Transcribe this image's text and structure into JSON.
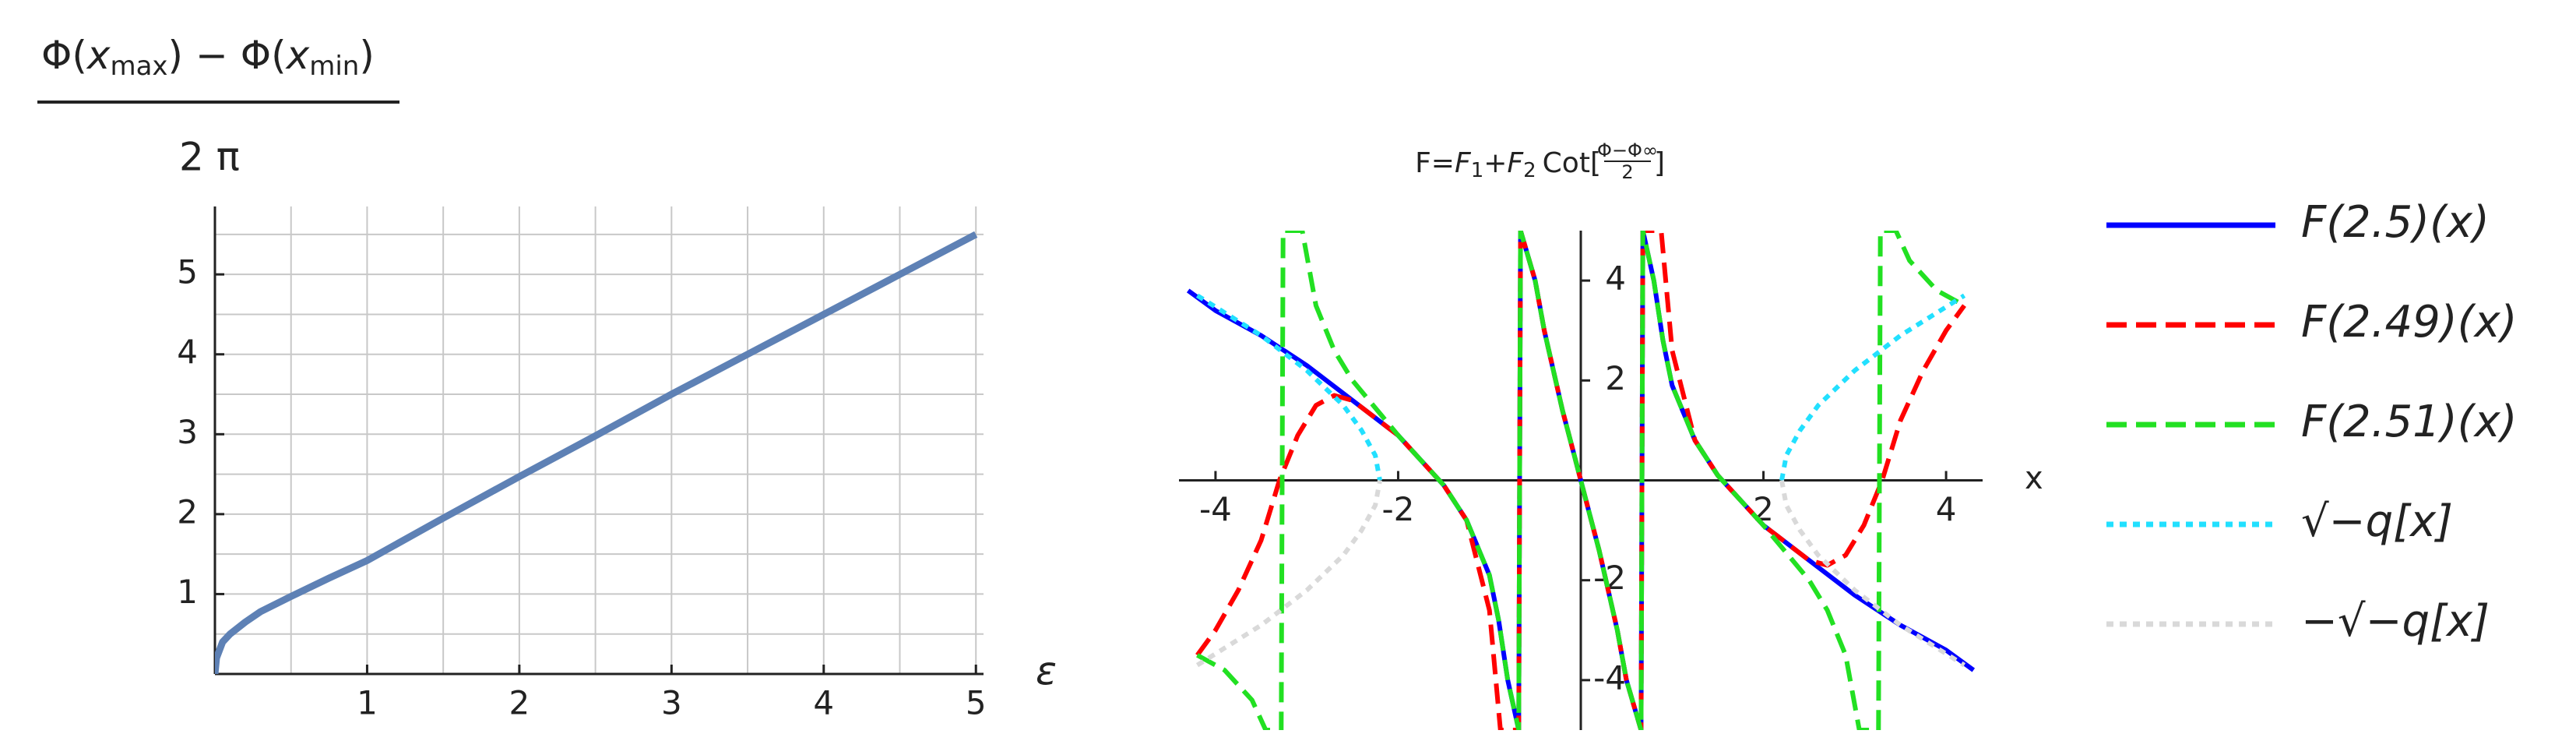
{
  "chart_data": [
    {
      "type": "line",
      "ylabel": {
        "numerator": [
          "Φ(",
          "x",
          "max",
          ") − Φ(",
          "x",
          "min",
          ")"
        ],
        "denominator": "2 π"
      },
      "xlabel": "ε",
      "x": [
        0,
        0.01,
        0.05,
        0.1,
        0.2,
        0.3,
        0.5,
        0.75,
        1,
        1.5,
        2,
        2.5,
        3,
        3.5,
        4,
        4.5,
        5
      ],
      "series": [
        {
          "color": "#5e81b5",
          "values": [
            0,
            0.2,
            0.4,
            0.5,
            0.65,
            0.78,
            0.97,
            1.2,
            1.42,
            1.95,
            2.47,
            2.98,
            3.5,
            4.0,
            4.5,
            5.0,
            5.5
          ]
        }
      ],
      "xlim": [
        0,
        5.05
      ],
      "ylim": [
        0,
        5.85
      ],
      "xticks": [
        1,
        2,
        3,
        4,
        5
      ],
      "yticks": [
        1,
        2,
        3,
        4,
        5
      ],
      "xgrid": [
        0.5,
        1,
        1.5,
        2,
        2.5,
        3,
        3.5,
        4,
        4.5,
        5
      ],
      "ygrid": [
        0.5,
        1,
        1.5,
        2,
        2.5,
        3,
        3.5,
        4,
        4.5,
        5,
        5.5
      ]
    },
    {
      "type": "line",
      "title": [
        "F=",
        "F",
        "1",
        "+",
        "F",
        "2",
        "Cot[",
        "Φ−Φ∞",
        "2",
        "]"
      ],
      "xlabel": "x",
      "xlim": [
        -4.4,
        4.4
      ],
      "ylim": [
        -5,
        5
      ],
      "xticks": [
        -4,
        -2,
        2,
        4
      ],
      "yticks": [
        -4,
        -2,
        2,
        4
      ],
      "legend": "right",
      "series": [
        {
          "name": "F(2.5)(x)",
          "color": "#0000ff",
          "dash": "solid",
          "x": [
            -4.3,
            -4,
            -3.5,
            -3,
            -2.5,
            -2,
            -1.5,
            -1.25,
            -1,
            -0.9,
            -0.8,
            -0.68,
            -0.66,
            -0.5,
            -0.4,
            -0.3,
            -0.2,
            -0.1,
            0,
            0.1,
            0.2,
            0.3,
            0.4,
            0.5,
            0.66,
            0.68,
            0.8,
            0.9,
            1,
            1.25,
            1.5,
            2,
            2.5,
            3,
            3.5,
            4,
            4.3
          ],
          "values": [
            3.8,
            3.4,
            2.9,
            2.3,
            1.6,
            0.9,
            -0.1,
            -0.8,
            -1.9,
            -2.8,
            -4,
            -5,
            5,
            4,
            3,
            2.2,
            1.4,
            0.7,
            0,
            -0.7,
            -1.4,
            -2.2,
            -3,
            -4,
            -5,
            5,
            4,
            2.8,
            1.9,
            0.8,
            0.1,
            -0.9,
            -1.6,
            -2.3,
            -2.9,
            -3.4,
            -3.8
          ]
        },
        {
          "name": "F(2.49)(x)",
          "color": "#ff0000",
          "dash": "dashed",
          "x": [
            -4.2,
            -4,
            -3.75,
            -3.5,
            -3.3,
            -3.1,
            -2.9,
            -2.7,
            -2.5,
            -2,
            -1.5,
            -1.25,
            -1,
            -0.88,
            -0.68,
            -0.66,
            -0.5,
            -0.4,
            -0.3,
            -0.2,
            -0.1,
            0,
            0.1,
            0.2,
            0.3,
            0.4,
            0.5,
            0.66,
            0.68,
            0.88,
            1,
            1.25,
            1.5,
            2,
            2.5,
            2.7,
            2.9,
            3.1,
            3.3,
            3.5,
            3.75,
            4,
            4.2
          ],
          "values": [
            -3.5,
            -3,
            -2.2,
            -1.2,
            0,
            0.9,
            1.5,
            1.7,
            1.6,
            0.9,
            -0.1,
            -0.8,
            -2.6,
            -5,
            -5,
            5,
            4,
            3,
            2.2,
            1.4,
            0.7,
            0,
            -0.7,
            -1.4,
            -2.2,
            -3,
            -4,
            -5,
            5,
            5,
            2.6,
            0.8,
            0.1,
            -0.9,
            -1.6,
            -1.7,
            -1.5,
            -0.9,
            0,
            1.2,
            2.2,
            3,
            3.5
          ]
        },
        {
          "name": "F(2.51)(x)",
          "color": "#22e022",
          "dash": "dashed",
          "x": [
            -4.2,
            -3.9,
            -3.6,
            -3.45,
            -3.28,
            -3.26,
            -3.05,
            -2.9,
            -2.7,
            -2.5,
            -2,
            -1.5,
            -1.25,
            -1,
            -0.9,
            -0.8,
            -0.68,
            -0.66,
            -0.5,
            -0.4,
            -0.3,
            -0.2,
            -0.1,
            0,
            0.1,
            0.2,
            0.3,
            0.4,
            0.5,
            0.66,
            0.68,
            0.8,
            0.9,
            1,
            1.25,
            1.5,
            2,
            2.5,
            2.7,
            2.9,
            3.05,
            3.26,
            3.28,
            3.45,
            3.6,
            3.9,
            4.2
          ],
          "values": [
            -3.5,
            -3.8,
            -4.4,
            -5,
            -5,
            5,
            5,
            3.5,
            2.6,
            2,
            0.9,
            -0.1,
            -0.8,
            -1.9,
            -2.8,
            -4,
            -5,
            5,
            4,
            3,
            2.2,
            1.4,
            0.7,
            0,
            -0.7,
            -1.4,
            -2.2,
            -3,
            -4,
            -5,
            5,
            4,
            2.8,
            1.9,
            0.8,
            0.1,
            -0.9,
            -2,
            -2.6,
            -3.5,
            -5,
            -5,
            5,
            5,
            4.4,
            3.8,
            3.5
          ]
        },
        {
          "name": "√−q[x]",
          "color": "#22e0ff",
          "dash": "dotted",
          "x": [
            -4.2,
            -3.5,
            -3,
            -2.6,
            -2.4,
            -2.25,
            -2.2,
            0,
            2.2,
            2.25,
            2.4,
            2.6,
            3,
            3.5,
            4.2
          ],
          "values": [
            3.7,
            2.9,
            2.2,
            1.5,
            1.0,
            0.5,
            0,
            null,
            0,
            0.5,
            1.0,
            1.5,
            2.2,
            2.9,
            3.7
          ]
        },
        {
          "name": "−√−q[x]",
          "color": "#d9d9d9",
          "dash": "dotted",
          "x": [
            -4.2,
            -3.5,
            -3,
            -2.6,
            -2.4,
            -2.25,
            -2.2,
            0,
            2.2,
            2.25,
            2.4,
            2.6,
            3,
            3.5,
            4.2
          ],
          "values": [
            -3.7,
            -2.9,
            -2.2,
            -1.5,
            -1.0,
            -0.5,
            0,
            null,
            0,
            -0.5,
            -1.0,
            -1.5,
            -2.2,
            -2.9,
            -3.7
          ]
        }
      ]
    }
  ]
}
